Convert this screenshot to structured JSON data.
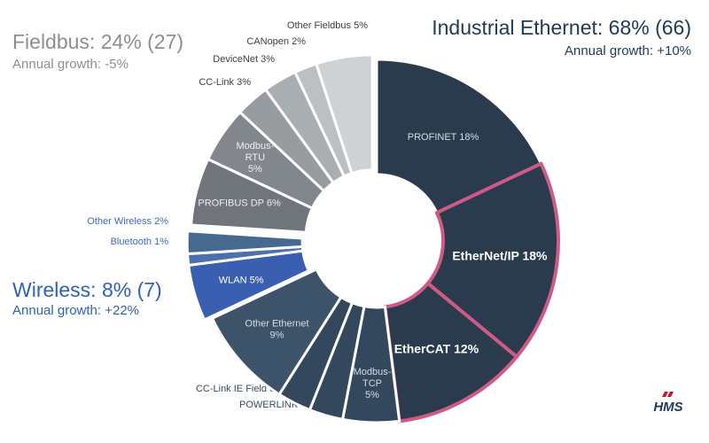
{
  "groups": {
    "ethernet": {
      "title": "Industrial Ethernet: 68% (66)",
      "growth": "Annual growth: +10%",
      "color": "#1f3a56"
    },
    "fieldbus": {
      "title": "Fieldbus: 24% (27)",
      "growth": "Annual growth: -5%",
      "color": "#8a8f94"
    },
    "wireless": {
      "title": "Wireless: 8% (7)",
      "growth": "Annual growth: +22%",
      "color": "#2f62b6"
    }
  },
  "logo": {
    "text": "HMS",
    "icon": "hms-logo-icon"
  },
  "chart_data": {
    "type": "pie",
    "style": "donut",
    "slices": [
      {
        "label": "PROFINET 18%",
        "value": 18,
        "group": "ethernet",
        "color": "#2a3b4d",
        "label_color": "#d6dde4"
      },
      {
        "label": "EtherNet/IP 18%",
        "value": 18,
        "group": "ethernet",
        "color": "#2a3b4d",
        "label_color": "#ffffff",
        "highlight": true
      },
      {
        "label": "EtherCAT 12%",
        "value": 12,
        "group": "ethernet",
        "color": "#2a3b4d",
        "label_color": "#ffffff",
        "highlight": true
      },
      {
        "label": "Modbus-TCP 5%",
        "value": 5,
        "group": "ethernet",
        "color": "#33475d",
        "label_color": "#d6dde4"
      },
      {
        "label": "POWERLINK 3%",
        "value": 3,
        "group": "ethernet",
        "color": "#33475d",
        "label_color": "#3a4a5a"
      },
      {
        "label": "CC-Link IE Field 3%",
        "value": 3,
        "group": "ethernet",
        "color": "#33475d",
        "label_color": "#3a4a5a"
      },
      {
        "label": "Other Ethernet 9%",
        "value": 9,
        "group": "ethernet",
        "color": "#3d5369",
        "label_color": "#d6dde4"
      },
      {
        "label": "WLAN 5%",
        "value": 5,
        "group": "wireless",
        "color": "#3a5fb0",
        "label_color": "#ffffff"
      },
      {
        "label": "Bluetooth 1%",
        "value": 1,
        "group": "wireless",
        "color": "#4a70ad",
        "label_color": "#3d6ab8"
      },
      {
        "label": "Other Wireless 2%",
        "value": 2,
        "group": "wireless",
        "color": "#45698f",
        "label_color": "#3d6ab8"
      },
      {
        "label": "PROFIBUS DP 6%",
        "value": 6,
        "group": "fieldbus",
        "color": "#6f757b",
        "label_color": "#eef0f2"
      },
      {
        "label": "Modbus-RTU 5%",
        "value": 5,
        "group": "fieldbus",
        "color": "#81878d",
        "label_color": "#eef0f2"
      },
      {
        "label": "CC-Link 3%",
        "value": 3,
        "group": "fieldbus",
        "color": "#979ca1",
        "label_color": "#3a3f44"
      },
      {
        "label": "DeviceNet 3%",
        "value": 3,
        "group": "fieldbus",
        "color": "#a9aeb2",
        "label_color": "#3a3f44"
      },
      {
        "label": "CANopen 2%",
        "value": 2,
        "group": "fieldbus",
        "color": "#bcc0c3",
        "label_color": "#3a3f44"
      },
      {
        "label": "Other Fieldbus 5%",
        "value": 5,
        "group": "fieldbus",
        "color": "#cfd2d5",
        "label_color": "#3a3f44"
      }
    ],
    "highlight_color": "#d05a86"
  }
}
